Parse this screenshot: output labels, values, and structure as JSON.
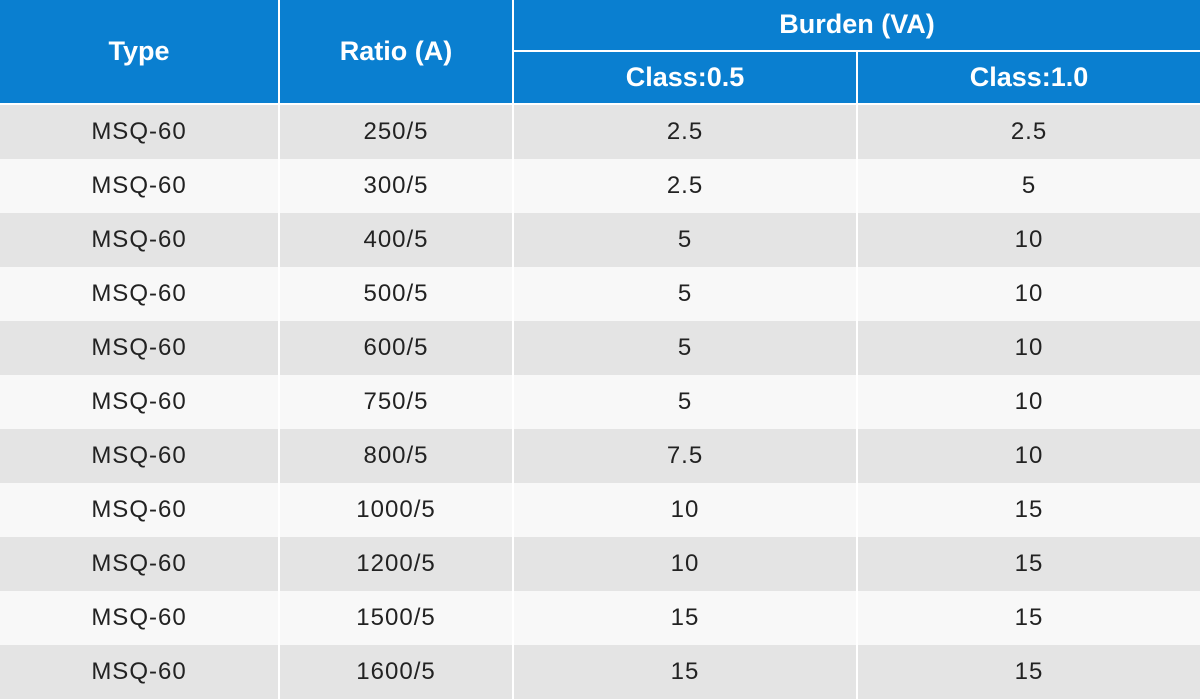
{
  "header": {
    "type_label": "Type",
    "ratio_label": "Ratio (A)",
    "burden_label": "Burden (VA)",
    "class05_label": "Class:0.5",
    "class10_label": "Class:1.0"
  },
  "rows": [
    {
      "type": "MSQ-60",
      "ratio": "250/5",
      "class05": "2.5",
      "class10": "2.5"
    },
    {
      "type": "MSQ-60",
      "ratio": "300/5",
      "class05": "2.5",
      "class10": "5"
    },
    {
      "type": "MSQ-60",
      "ratio": "400/5",
      "class05": "5",
      "class10": "10"
    },
    {
      "type": "MSQ-60",
      "ratio": "500/5",
      "class05": "5",
      "class10": "10"
    },
    {
      "type": "MSQ-60",
      "ratio": "600/5",
      "class05": "5",
      "class10": "10"
    },
    {
      "type": "MSQ-60",
      "ratio": "750/5",
      "class05": "5",
      "class10": "10"
    },
    {
      "type": "MSQ-60",
      "ratio": "800/5",
      "class05": "7.5",
      "class10": "10"
    },
    {
      "type": "MSQ-60",
      "ratio": "1000/5",
      "class05": "10",
      "class10": "15"
    },
    {
      "type": "MSQ-60",
      "ratio": "1200/5",
      "class05": "10",
      "class10": "15"
    },
    {
      "type": "MSQ-60",
      "ratio": "1500/5",
      "class05": "15",
      "class10": "15"
    },
    {
      "type": "MSQ-60",
      "ratio": "1600/5",
      "class05": "15",
      "class10": "15"
    }
  ],
  "colors": {
    "header_bg": "#0a7fd0",
    "header_text": "#ffffff",
    "row_odd_bg": "#e4e4e4",
    "row_even_bg": "#f8f8f8",
    "cell_text": "#222222"
  }
}
